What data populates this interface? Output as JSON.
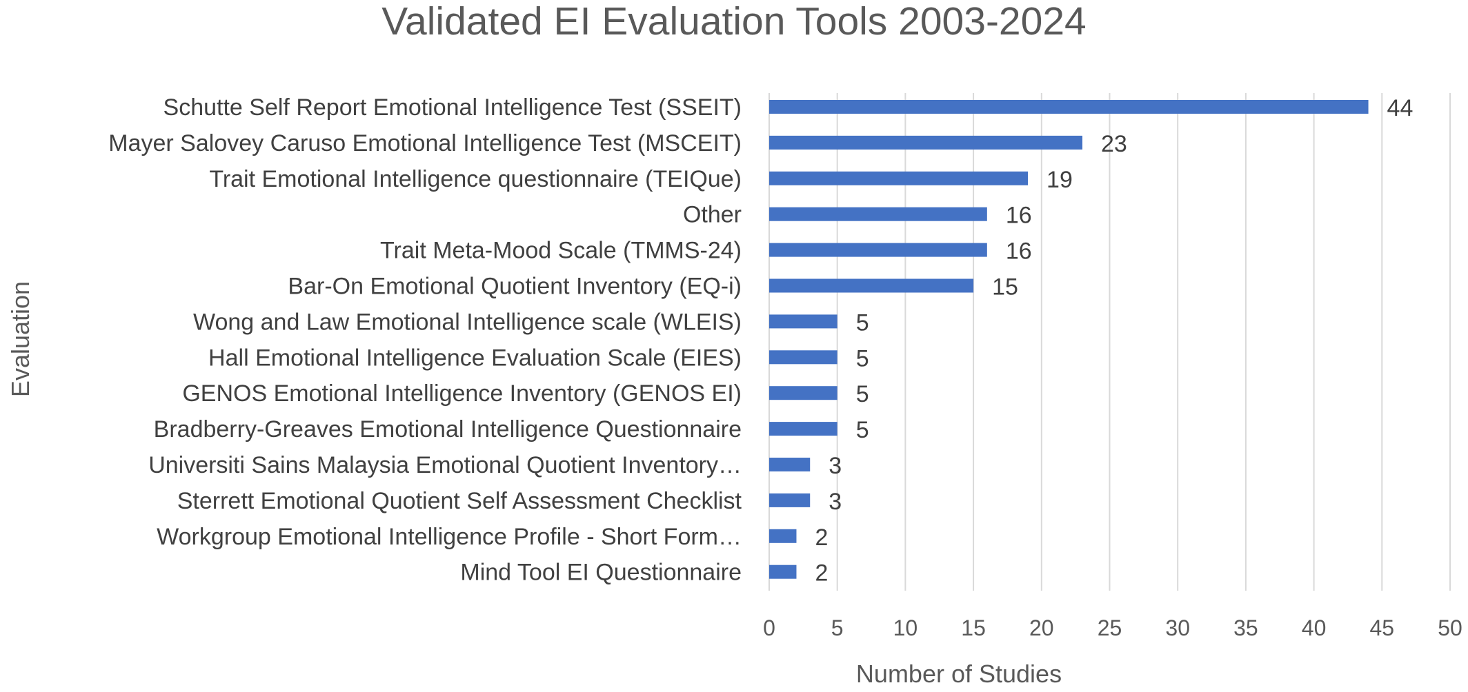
{
  "chart_data": {
    "type": "bar",
    "orientation": "horizontal",
    "title": "Validated EI Evaluation Tools 2003-2024",
    "xlabel": "Number of Studies",
    "ylabel": "Evaluation",
    "xlim": [
      0,
      50
    ],
    "xticks": [
      0,
      5,
      10,
      15,
      20,
      25,
      30,
      35,
      40,
      45,
      50
    ],
    "grid": true,
    "legend": "none",
    "bar_color": "#4472C4",
    "categories": [
      "Schutte Self Report Emotional Intelligence Test (SSEIT)",
      "Mayer Salovey Caruso Emotional Intelligence Test (MSCEIT)",
      "Trait Emotional Intelligence questionnaire  (TEIQue)",
      "Other",
      "Trait Meta-Mood Scale (TMMS-24)",
      "Bar-On Emotional Quotient Inventory (EQ-i)",
      "Wong and Law Emotional Intelligence scale (WLEIS)",
      "Hall Emotional Intelligence Evaluation Scale (EIES)",
      "GENOS Emotional Intelligence Inventory (GENOS EI)",
      "Bradberry-Greaves Emotional Intelligence Questionnaire",
      "Universiti Sains Malaysia Emotional Quotient Inventory…",
      "Sterrett Emotional Quotient Self Assessment Checklist",
      "Workgroup Emotional Intelligence Profile - Short Form…",
      "Mind Tool EI Questionnaire"
    ],
    "values": [
      44,
      23,
      19,
      16,
      16,
      15,
      5,
      5,
      5,
      5,
      3,
      3,
      2,
      2
    ],
    "data_labels": [
      "44",
      "23",
      "19",
      "16",
      "16",
      "15",
      "5",
      "5",
      "5",
      "5",
      "3",
      "3",
      "2",
      "2"
    ]
  }
}
